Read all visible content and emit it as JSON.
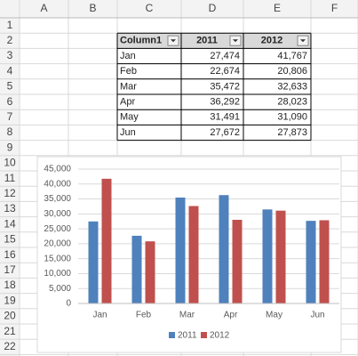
{
  "sheet": {
    "column_headers": [
      "A",
      "B",
      "C",
      "D",
      "E",
      "F"
    ],
    "row_headers": [
      1,
      2,
      3,
      4,
      5,
      6,
      7,
      8,
      9,
      10,
      11,
      12,
      13,
      14,
      15,
      16,
      17,
      18,
      19,
      20,
      21,
      22
    ]
  },
  "table": {
    "header": [
      "Column1",
      "2011",
      "2012"
    ],
    "rows": [
      [
        "Jan",
        "27,474",
        "41,767"
      ],
      [
        "Feb",
        "22,674",
        "20,806"
      ],
      [
        "Mar",
        "35,472",
        "32,633"
      ],
      [
        "Apr",
        "36,292",
        "28,023"
      ],
      [
        "May",
        "31,491",
        "31,090"
      ],
      [
        "Jun",
        "27,672",
        "27,873"
      ]
    ]
  },
  "chart_data": {
    "type": "bar",
    "categories": [
      "Jan",
      "Feb",
      "Mar",
      "Apr",
      "May",
      "Jun"
    ],
    "series": [
      {
        "name": "2011",
        "color": "#4f81bd",
        "values": [
          27474,
          22674,
          35472,
          36292,
          31491,
          27672
        ]
      },
      {
        "name": "2012",
        "color": "#c0504d",
        "values": [
          41767,
          20806,
          32633,
          28023,
          31090,
          27873
        ]
      }
    ],
    "ylim": [
      0,
      45000
    ],
    "yticks": [
      0,
      {
        "value": 5000,
        "label": "5,000"
      },
      {
        "value": 10000,
        "label": "10,000"
      },
      {
        "value": 15000,
        "label": "15,000"
      },
      {
        "value": 20000,
        "label": "20,000"
      },
      {
        "value": 25000,
        "label": "25,000"
      },
      {
        "value": 30000,
        "label": "30,000"
      },
      {
        "value": 35000,
        "label": "35,000"
      },
      {
        "value": 40000,
        "label": "40,000"
      },
      {
        "value": 45000,
        "label": "45,000"
      }
    ],
    "grid": true,
    "legend": "bottom"
  }
}
